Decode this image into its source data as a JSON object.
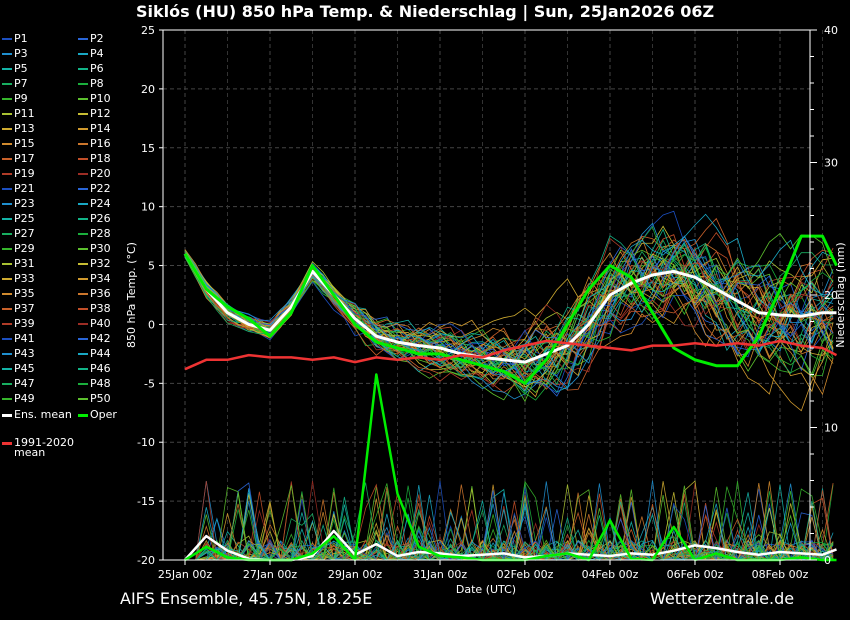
{
  "chart_data": {
    "type": "line",
    "title": "Siklós  (HU)  850 hPa Temp. & Niederschlag | Sun, 25Jan2026 06Z",
    "ylabel": "850 hPa Temp. (°C)",
    "ylabel_right": "Niederschlag (mm)",
    "xlabel": "Date (UTC)",
    "ylim": [
      -20,
      25
    ],
    "ylim_right": [
      0,
      40
    ],
    "yticks": [
      "25",
      "20",
      "15",
      "10",
      "5",
      "0",
      "-5",
      "-10",
      "-15",
      "-20"
    ],
    "yticks_right": [
      "40",
      "30",
      "20",
      "10",
      "0"
    ],
    "xlim_days": [
      0,
      15.33
    ],
    "x_ticks": [
      {
        "day": 0,
        "label": "25Jan 00z"
      },
      {
        "day": 2,
        "label": "27Jan 00z"
      },
      {
        "day": 4,
        "label": "29Jan 00z"
      },
      {
        "day": 6,
        "label": "31Jan 00z"
      },
      {
        "day": 8,
        "label": "02Feb 00z"
      },
      {
        "day": 10,
        "label": "04Feb 00z"
      },
      {
        "day": 12,
        "label": "06Feb 00z"
      },
      {
        "day": 14,
        "label": "08Feb 00z"
      }
    ],
    "grid": true,
    "member_count": 50,
    "series": [
      {
        "name": "Ens. mean",
        "color": "#ffffff",
        "axis": "temp",
        "x": [
          0,
          0.5,
          1,
          1.5,
          2,
          2.5,
          3,
          3.5,
          4,
          4.5,
          5,
          5.5,
          6,
          6.5,
          7,
          7.5,
          8,
          8.5,
          9,
          9.5,
          10,
          10.5,
          11,
          11.5,
          12,
          12.5,
          13,
          13.5,
          14,
          14.5,
          15,
          15.33
        ],
        "values": [
          6,
          3,
          1,
          0,
          -0.5,
          1.5,
          4.5,
          2.5,
          0.5,
          -1,
          -1.5,
          -1.8,
          -2,
          -2.5,
          -2.8,
          -3,
          -3.2,
          -2.5,
          -1.8,
          0,
          2.5,
          3.5,
          4.2,
          4.5,
          4,
          3,
          2,
          1,
          0.8,
          0.7,
          1,
          1
        ]
      },
      {
        "name": "Oper",
        "color": "#00ee00",
        "axis": "temp",
        "x": [
          0,
          0.5,
          1,
          1.5,
          2,
          2.5,
          3,
          3.5,
          4,
          4.5,
          5,
          5.5,
          6,
          6.5,
          7,
          7.5,
          8,
          8.5,
          9,
          9.5,
          10,
          10.5,
          11,
          11.5,
          12,
          12.5,
          13,
          13.5,
          14,
          14.5,
          15,
          15.33
        ],
        "values": [
          6,
          3,
          1.5,
          0.5,
          -1,
          1,
          5,
          2.5,
          0,
          -1.5,
          -2,
          -2.5,
          -2.5,
          -3,
          -3.5,
          -4,
          -5,
          -3,
          0,
          3,
          5,
          4,
          1,
          -2,
          -3,
          -3.5,
          -3.5,
          -1,
          3,
          7.5,
          7.5,
          5
        ]
      },
      {
        "name": "1991-2020 mean",
        "color": "#ee3333",
        "axis": "temp",
        "x": [
          0,
          0.5,
          1,
          1.5,
          2,
          2.5,
          3,
          3.5,
          4,
          4.5,
          5,
          5.5,
          6,
          6.5,
          7,
          7.5,
          8,
          8.5,
          9,
          9.5,
          10,
          10.5,
          11,
          11.5,
          12,
          12.5,
          13,
          13.5,
          14,
          14.5,
          15,
          15.33
        ],
        "values": [
          -3.8,
          -3,
          -3,
          -2.6,
          -2.8,
          -2.8,
          -3,
          -2.8,
          -3.2,
          -2.8,
          -3,
          -2.8,
          -3,
          -2.6,
          -2.8,
          -2.2,
          -1.8,
          -1.4,
          -1.6,
          -1.8,
          -2,
          -2.2,
          -1.8,
          -1.8,
          -1.6,
          -1.8,
          -1.6,
          -1.8,
          -1.4,
          -1.8,
          -2,
          -2.6
        ]
      },
      {
        "name": "Ens. mean precipitation",
        "color": "#ffffff",
        "axis": "precip",
        "x": [
          0,
          0.5,
          1,
          1.5,
          2,
          2.5,
          3,
          3.5,
          4,
          4.5,
          5,
          5.5,
          6,
          6.5,
          7,
          7.5,
          8,
          8.5,
          9,
          9.5,
          10,
          10.5,
          11,
          11.5,
          12,
          12.5,
          13,
          13.5,
          14,
          14.5,
          15,
          15.33
        ],
        "values": [
          0,
          1.8,
          0.7,
          0.1,
          0,
          0,
          0.3,
          2.2,
          0.4,
          1.2,
          0.3,
          0.6,
          0.5,
          0.3,
          0.4,
          0.5,
          0.2,
          0.3,
          0.5,
          0.4,
          0.3,
          0.5,
          0.4,
          0.7,
          1.1,
          0.9,
          0.6,
          0.4,
          0.6,
          0.5,
          0.4,
          0.8
        ]
      },
      {
        "name": "Oper precipitation",
        "color": "#00ee00",
        "axis": "precip",
        "x": [
          0,
          0.5,
          1,
          1.5,
          2,
          2.5,
          3,
          3.5,
          4,
          4.5,
          5,
          5.5,
          6,
          6.5,
          7,
          7.5,
          8,
          8.5,
          9,
          9.5,
          10,
          10.5,
          11,
          11.5,
          12,
          12.5,
          13,
          13.5,
          14,
          14.5,
          15,
          15.33
        ],
        "values": [
          0,
          1,
          0.2,
          0,
          0,
          0,
          0.5,
          1.8,
          0,
          14,
          5,
          1,
          0.3,
          0.2,
          0,
          0,
          0,
          0.3,
          0.5,
          0,
          3,
          0.1,
          0,
          2.5,
          0,
          0.5,
          0,
          0,
          0,
          0.2,
          0,
          0
        ]
      }
    ],
    "legend": {
      "members": [
        "P1",
        "P2",
        "P3",
        "P4",
        "P5",
        "P6",
        "P7",
        "P8",
        "P9",
        "P10",
        "P11",
        "P12",
        "P13",
        "P14",
        "P15",
        "P16",
        "P17",
        "P18",
        "P19",
        "P20",
        "P21",
        "P22",
        "P23",
        "P24",
        "P25",
        "P26",
        "P27",
        "P28",
        "P29",
        "P30",
        "P31",
        "P32",
        "P33",
        "P34",
        "P35",
        "P36",
        "P37",
        "P38",
        "P39",
        "P40",
        "P41",
        "P42",
        "P43",
        "P44",
        "P45",
        "P46",
        "P47",
        "P48",
        "P49",
        "P50"
      ],
      "member_colors": [
        "#1c4fc0",
        "#2a66d8",
        "#1f8fcf",
        "#19a8c4",
        "#14b4a8",
        "#12b488",
        "#18ae60",
        "#1aae3c",
        "#36b62c",
        "#5cc02e",
        "#a9c232",
        "#c7bd33",
        "#cfab30",
        "#d09a2e",
        "#d08a2e",
        "#cc762c",
        "#c9612a",
        "#c24f29",
        "#b03c28",
        "#9c2d25"
      ],
      "ens_mean": "Ens. mean",
      "oper": "Oper",
      "clim_line1": "1991-2020",
      "clim_line2": "mean"
    }
  },
  "footer": {
    "model": "AIFS Ensemble, 45.75N, 18.25E",
    "site": "Wetterzentrale.de"
  }
}
